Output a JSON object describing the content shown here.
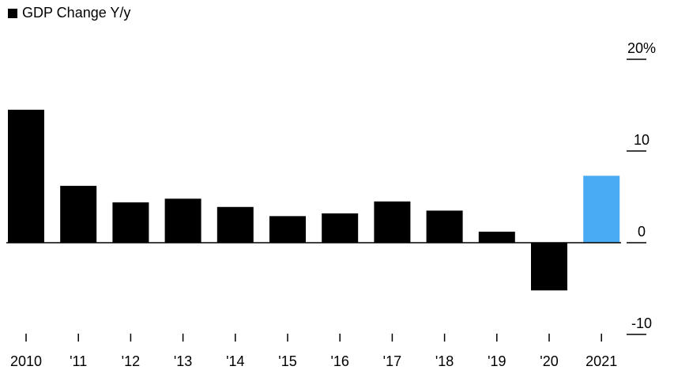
{
  "chart_data": {
    "type": "bar",
    "categories": [
      "2010",
      "'11",
      "'12",
      "'13",
      "'14",
      "'15",
      "'16",
      "'17",
      "'18",
      "'19",
      "'20",
      "2021"
    ],
    "series": [
      {
        "name": "GDP Change Y/y",
        "values": [
          14.5,
          6.2,
          4.4,
          4.8,
          3.9,
          2.9,
          3.2,
          4.5,
          3.5,
          1.2,
          -5.2,
          7.3
        ]
      }
    ],
    "highlight_index": 11,
    "colors": {
      "bar": "#000000",
      "highlight": "#4AABF5"
    },
    "y_ticks": [
      {
        "value": 20,
        "label": "20%"
      },
      {
        "value": 10,
        "label": "10"
      },
      {
        "value": 0,
        "label": "0"
      },
      {
        "value": -10,
        "label": "-10"
      }
    ],
    "ylim": [
      -10,
      20
    ],
    "grid": false,
    "legend_position": "top-left"
  }
}
